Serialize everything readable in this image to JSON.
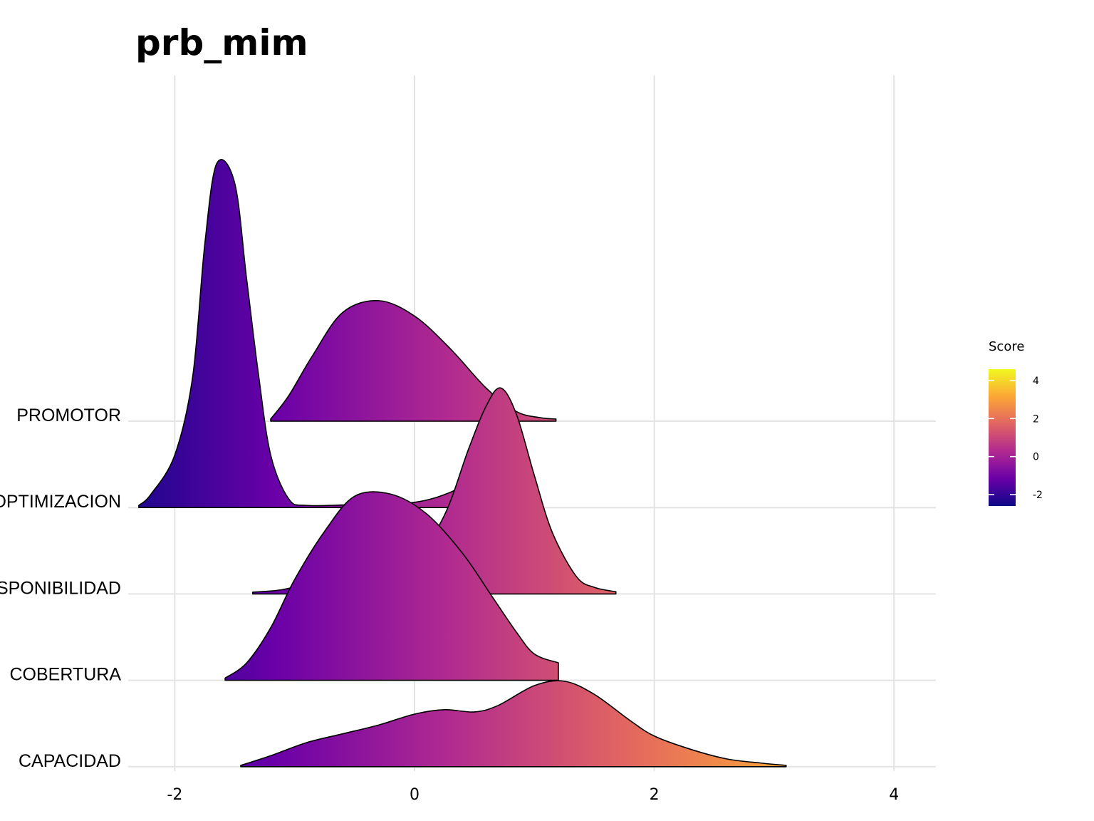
{
  "chart_data": {
    "type": "ridgeline",
    "title": "prb_mim",
    "xlabel": "",
    "ylabel": "",
    "xlim": [
      -2.35,
      4.35
    ],
    "x_ticks": [
      -2,
      0,
      2,
      4
    ],
    "x_tick_labels": [
      "-2",
      "0",
      "2",
      "4"
    ],
    "grid": true,
    "categories": [
      "PROMOTOR",
      "OPTIMIZACION",
      "DISPONIBILIDAD",
      "COBERTURA",
      "CAPACIDAD"
    ],
    "series": [
      {
        "name": "PROMOTOR",
        "range": [
          -1.2,
          1.18
        ],
        "points": [
          [
            -1.2,
            0.05
          ],
          [
            -1.05,
            0.58
          ],
          [
            -0.85,
            1.5
          ],
          [
            -0.6,
            2.48
          ],
          [
            -0.3,
            2.75
          ],
          [
            0.0,
            2.4
          ],
          [
            0.3,
            1.65
          ],
          [
            0.6,
            0.75
          ],
          [
            0.85,
            0.22
          ],
          [
            1.05,
            0.08
          ],
          [
            1.18,
            0.05
          ]
        ]
      },
      {
        "name": "OPTIMIZACION",
        "range": [
          -2.3,
          0.45
        ],
        "points": [
          [
            -2.3,
            0.05
          ],
          [
            -2.2,
            0.3
          ],
          [
            -2.0,
            1.2
          ],
          [
            -1.85,
            3.0
          ],
          [
            -1.75,
            6.0
          ],
          [
            -1.65,
            7.85
          ],
          [
            -1.5,
            7.4
          ],
          [
            -1.4,
            5.2
          ],
          [
            -1.3,
            3.0
          ],
          [
            -1.2,
            1.2
          ],
          [
            -1.05,
            0.2
          ],
          [
            -0.9,
            0.05
          ],
          [
            -0.5,
            0.07
          ],
          [
            0.0,
            0.12
          ],
          [
            0.3,
            0.35
          ],
          [
            0.45,
            0.6
          ]
        ]
      },
      {
        "name": "DISPONIBILIDAD",
        "range": [
          -1.35,
          1.68
        ],
        "points": [
          [
            -1.35,
            0.04
          ],
          [
            -1.1,
            0.1
          ],
          [
            -0.8,
            0.3
          ],
          [
            -0.3,
            0.65
          ],
          [
            0.0,
            0.8
          ],
          [
            0.25,
            1.8
          ],
          [
            0.45,
            3.3
          ],
          [
            0.6,
            4.3
          ],
          [
            0.72,
            4.7
          ],
          [
            0.85,
            4.1
          ],
          [
            1.0,
            2.7
          ],
          [
            1.15,
            1.4
          ],
          [
            1.35,
            0.4
          ],
          [
            1.5,
            0.15
          ],
          [
            1.68,
            0.05
          ]
        ]
      },
      {
        "name": "COBERTURA",
        "range": [
          -1.58,
          1.2
        ],
        "points": [
          [
            -1.58,
            0.05
          ],
          [
            -1.4,
            0.4
          ],
          [
            -1.2,
            1.2
          ],
          [
            -1.0,
            2.3
          ],
          [
            -0.75,
            3.4
          ],
          [
            -0.5,
            4.2
          ],
          [
            -0.2,
            4.25
          ],
          [
            0.1,
            3.8
          ],
          [
            0.4,
            2.9
          ],
          [
            0.65,
            1.9
          ],
          [
            0.85,
            1.1
          ],
          [
            1.0,
            0.6
          ],
          [
            1.2,
            0.4
          ]
        ]
      },
      {
        "name": "CAPACIDAD",
        "range": [
          -1.45,
          3.1
        ],
        "points": [
          [
            -1.45,
            0.03
          ],
          [
            -1.2,
            0.25
          ],
          [
            -0.9,
            0.55
          ],
          [
            -0.6,
            0.75
          ],
          [
            -0.3,
            0.95
          ],
          [
            0.0,
            1.2
          ],
          [
            0.25,
            1.3
          ],
          [
            0.5,
            1.25
          ],
          [
            0.7,
            1.4
          ],
          [
            1.0,
            1.85
          ],
          [
            1.25,
            1.95
          ],
          [
            1.5,
            1.65
          ],
          [
            1.8,
            1.05
          ],
          [
            2.0,
            0.7
          ],
          [
            2.3,
            0.4
          ],
          [
            2.6,
            0.18
          ],
          [
            2.9,
            0.08
          ],
          [
            3.1,
            0.03
          ]
        ]
      }
    ],
    "fill": {
      "type": "gradient",
      "by": "x",
      "palette": "plasma",
      "stops": [
        "#0d0887",
        "#6a00a8",
        "#b12a90",
        "#e16462",
        "#fca636",
        "#f0f921"
      ],
      "domain": [
        -2.6,
        4.6
      ]
    },
    "legend": {
      "title": "Score",
      "position": "right",
      "ticks": [
        4,
        2,
        0,
        -2
      ],
      "tick_labels": [
        "4",
        "2",
        "0",
        "-2"
      ]
    },
    "colors": {
      "grid": "#e3e3e3",
      "outline": "#000000",
      "background": "#ffffff"
    }
  }
}
